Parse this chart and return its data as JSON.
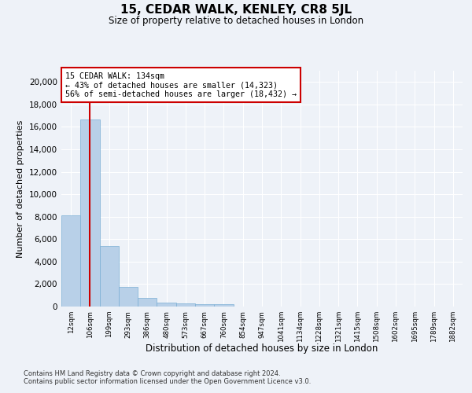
{
  "title": "15, CEDAR WALK, KENLEY, CR8 5JL",
  "subtitle": "Size of property relative to detached houses in London",
  "xlabel": "Distribution of detached houses by size in London",
  "ylabel": "Number of detached properties",
  "bar_color": "#b8d0e8",
  "bar_edge_color": "#7aafd4",
  "vline_color": "#cc0000",
  "vline_x": 1,
  "categories": [
    "12sqm",
    "106sqm",
    "199sqm",
    "293sqm",
    "386sqm",
    "480sqm",
    "573sqm",
    "667sqm",
    "760sqm",
    "854sqm",
    "947sqm",
    "1041sqm",
    "1134sqm",
    "1228sqm",
    "1321sqm",
    "1415sqm",
    "1508sqm",
    "1602sqm",
    "1695sqm",
    "1789sqm",
    "1882sqm"
  ],
  "values": [
    8100,
    16650,
    5400,
    1750,
    800,
    350,
    270,
    200,
    180,
    0,
    0,
    0,
    0,
    0,
    0,
    0,
    0,
    0,
    0,
    0,
    0
  ],
  "ylim": [
    0,
    21000
  ],
  "yticks": [
    0,
    2000,
    4000,
    6000,
    8000,
    10000,
    12000,
    14000,
    16000,
    18000,
    20000
  ],
  "annotation_title": "15 CEDAR WALK: 134sqm",
  "annotation_line1": "← 43% of detached houses are smaller (14,323)",
  "annotation_line2": "56% of semi-detached houses are larger (18,432) →",
  "annotation_box_color": "#ffffff",
  "annotation_box_edge": "#cc0000",
  "footer1": "Contains HM Land Registry data © Crown copyright and database right 2024.",
  "footer2": "Contains public sector information licensed under the Open Government Licence v3.0.",
  "background_color": "#eef2f8",
  "grid_color": "#ffffff"
}
